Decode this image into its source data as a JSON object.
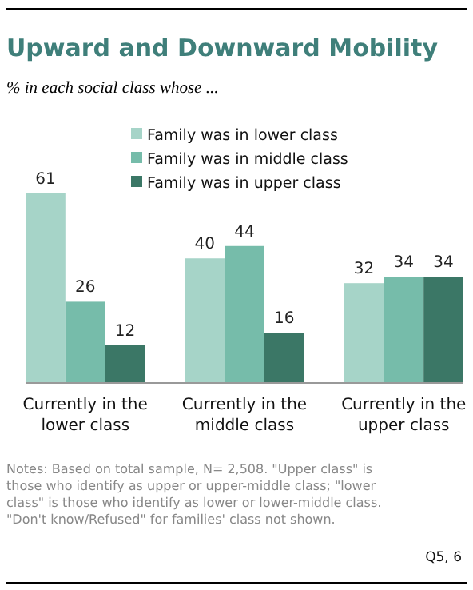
{
  "chart_data": {
    "type": "bar",
    "title": "Upward and Downward Mobility",
    "subtitle": "% in each social class whose ...",
    "categories": [
      "Currently in the lower class",
      "Currently in the middle class",
      "Currently in the upper class"
    ],
    "series": [
      {
        "name": "Family was in lower class",
        "color": "#a6d4c8",
        "values": [
          61,
          40,
          32
        ]
      },
      {
        "name": "Family was in middle class",
        "color": "#76bcaa",
        "values": [
          26,
          44,
          34
        ]
      },
      {
        "name": "Family was in upper class",
        "color": "#3b7766",
        "values": [
          12,
          16,
          34
        ]
      }
    ],
    "data_labels": true,
    "legend": "top right",
    "annotations": [
      "Notes: Based on total sample, N= 2,508. \"Upper class\" is those who identify as upper or upper-middle class; \"lower class\" is those who identify as lower or lower-middle class. \"Don't know/Refused\" for families' class not shown.",
      "Q5, 6"
    ]
  }
}
